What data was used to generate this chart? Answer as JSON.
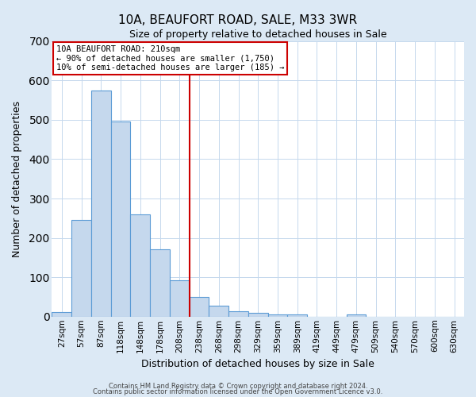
{
  "title": "10A, BEAUFORT ROAD, SALE, M33 3WR",
  "subtitle": "Size of property relative to detached houses in Sale",
  "xlabel": "Distribution of detached houses by size in Sale",
  "ylabel": "Number of detached properties",
  "bar_labels": [
    "27sqm",
    "57sqm",
    "87sqm",
    "118sqm",
    "148sqm",
    "178sqm",
    "208sqm",
    "238sqm",
    "268sqm",
    "298sqm",
    "329sqm",
    "359sqm",
    "389sqm",
    "419sqm",
    "449sqm",
    "479sqm",
    "509sqm",
    "540sqm",
    "570sqm",
    "600sqm",
    "630sqm"
  ],
  "bar_values": [
    12,
    245,
    575,
    495,
    260,
    170,
    92,
    50,
    27,
    14,
    10,
    6,
    5,
    0,
    0,
    5,
    0,
    0,
    0,
    0,
    0
  ],
  "bar_color": "#c5d8ed",
  "bar_edge_color": "#5b9bd5",
  "fig_background_color": "#dce9f5",
  "plot_background_color": "#ffffff",
  "grid_color": "#c5d8ed",
  "vline_color": "#cc0000",
  "annotation_lines": [
    "10A BEAUFORT ROAD: 210sqm",
    "← 90% of detached houses are smaller (1,750)",
    "10% of semi-detached houses are larger (185) →"
  ],
  "ylim": [
    0,
    700
  ],
  "yticks": [
    0,
    100,
    200,
    300,
    400,
    500,
    600,
    700
  ],
  "footer_line1": "Contains HM Land Registry data © Crown copyright and database right 2024.",
  "footer_line2": "Contains public sector information licensed under the Open Government Licence v3.0."
}
